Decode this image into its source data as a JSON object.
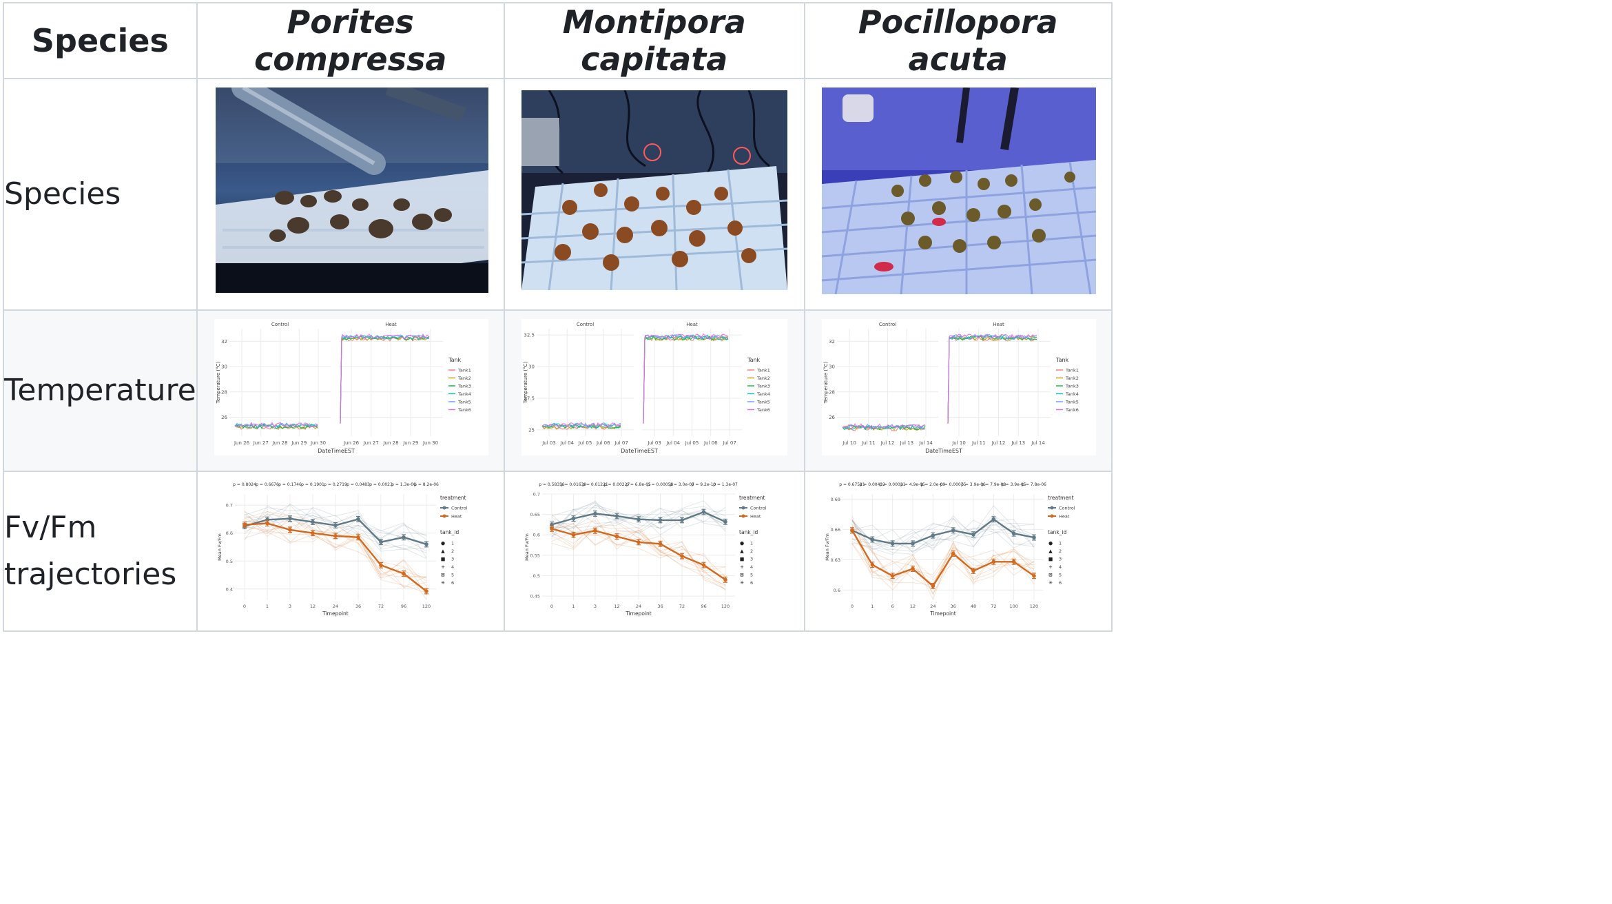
{
  "headers": [
    "Species",
    "Porites compressa",
    "Montipora capitata",
    "Pocillopora acuta"
  ],
  "rows": {
    "species": "Species",
    "temperature": "Temperature",
    "fvfm": [
      "Fv/Fm",
      "trajectories"
    ]
  },
  "colors": {
    "control": "#5f7a86",
    "heat": "#d2691e",
    "border": "#d0d7de",
    "alt_row": "#f6f8fa"
  },
  "temperature": {
    "facets": [
      "Control",
      "Heat"
    ],
    "legend_title": "Tank",
    "tanks": [
      "Tank1",
      "Tank2",
      "Tank3",
      "Tank4",
      "Tank5",
      "Tank6"
    ],
    "tank_colors": [
      "#f8766d",
      "#b79f00",
      "#00ba38",
      "#00bfc4",
      "#619cff",
      "#f564e3"
    ],
    "xlabel": "DateTimeEST",
    "ylabel": "Temperature (°C)"
  },
  "fvfm": {
    "legend_treatment": "treatment",
    "treatments": [
      "Control",
      "Heat"
    ],
    "legend_tank": "tank_id",
    "tank_ids": [
      "1",
      "2",
      "3",
      "4",
      "5",
      "6"
    ],
    "tank_glyphs": [
      "●",
      "▲",
      "■",
      "+",
      "⊠",
      "✳"
    ],
    "xlabel": "Timepoint",
    "ylabel": "Mean Fv/Fm"
  },
  "chart_data": [
    {
      "type": "line",
      "title": "",
      "xlabel": "DateTimeEST",
      "ylabel": "Temperature (°C)",
      "panels": [
        {
          "facet": "Control",
          "xticks": [
            "Jun 26",
            "Jun 27",
            "Jun 28",
            "Jun 29",
            "Jun 30"
          ],
          "level": 25.3
        },
        {
          "facet": "Heat",
          "xticks": [
            "Jun 26",
            "Jun 27",
            "Jun 28",
            "Jun 29",
            "Jun 30"
          ],
          "level": 32.3
        }
      ],
      "yticks": [
        26,
        28,
        30,
        32
      ],
      "ylim": [
        24.5,
        33
      ]
    },
    {
      "type": "line",
      "title": "",
      "xlabel": "DateTimeEST",
      "ylabel": "Temperature (°C)",
      "panels": [
        {
          "facet": "Control",
          "xticks": [
            "Jul 03",
            "Jul 04",
            "Jul 05",
            "Jul 06",
            "Jul 07"
          ],
          "level": 25.3
        },
        {
          "facet": "Heat",
          "xticks": [
            "Jul 03",
            "Jul 04",
            "Jul 05",
            "Jul 06",
            "Jul 07"
          ],
          "level": 32.3
        }
      ],
      "yticks": [
        25.0,
        27.5,
        30.0,
        32.5
      ],
      "ylim": [
        24.5,
        33
      ]
    },
    {
      "type": "line",
      "title": "",
      "xlabel": "DateTimeEST",
      "ylabel": "Temperature (°C)",
      "panels": [
        {
          "facet": "Control",
          "xticks": [
            "Jul 10",
            "Jul 11",
            "Jul 12",
            "Jul 13",
            "Jul 14"
          ],
          "level": 25.2
        },
        {
          "facet": "Heat",
          "xticks": [
            "Jul 10",
            "Jul 11",
            "Jul 12",
            "Jul 13",
            "Jul 14"
          ],
          "level": 32.3
        }
      ],
      "yticks": [
        26,
        28,
        30,
        32
      ],
      "ylim": [
        24.5,
        33
      ]
    },
    {
      "type": "line",
      "xlabel": "Timepoint",
      "ylabel": "Mean Fv/Fm",
      "categories": [
        "0",
        "1",
        "3",
        "12",
        "24",
        "36",
        "72",
        "96",
        "120"
      ],
      "pvalues": [
        "p = 0.8024",
        "p = 0.6676",
        "p = 0.1746",
        "p = 0.1901",
        "p = 0.2719",
        "p = 0.0483",
        "p = 0.0023",
        "p = 1.3e-06",
        "p = 8.2e-06"
      ],
      "yticks": [
        0.4,
        0.5,
        0.6,
        0.7
      ],
      "ylim": [
        0.36,
        0.74
      ],
      "series": [
        {
          "name": "Control",
          "values": [
            0.625,
            0.648,
            0.652,
            0.64,
            0.628,
            0.65,
            0.568,
            0.585,
            0.56
          ]
        },
        {
          "name": "Heat",
          "values": [
            0.63,
            0.635,
            0.612,
            0.6,
            0.59,
            0.585,
            0.485,
            0.455,
            0.392
          ]
        }
      ]
    },
    {
      "type": "line",
      "xlabel": "Timepoint",
      "ylabel": "Mean Fv/Fm",
      "categories": [
        "0",
        "1",
        "3",
        "12",
        "24",
        "36",
        "72",
        "96",
        "120"
      ],
      "pvalues": [
        "p = 0.58356",
        "p = 0.01639",
        "p = 0.01221",
        "p = 0.00227",
        "p = 6.8e-05",
        "p = 0.00058",
        "p = 3.0e-07",
        "p = 9.2e-10",
        "p = 1.3e-07"
      ],
      "yticks": [
        0.45,
        0.5,
        0.55,
        0.6,
        0.65,
        0.7
      ],
      "ylim": [
        0.44,
        0.7
      ],
      "series": [
        {
          "name": "Control",
          "values": [
            0.625,
            0.64,
            0.652,
            0.646,
            0.638,
            0.636,
            0.636,
            0.656,
            0.632
          ]
        },
        {
          "name": "Heat",
          "values": [
            0.615,
            0.6,
            0.61,
            0.596,
            0.582,
            0.578,
            0.548,
            0.526,
            0.49
          ]
        }
      ]
    },
    {
      "type": "line",
      "xlabel": "Timepoint",
      "ylabel": "Mean Fv/Fm",
      "categories": [
        "0",
        "1",
        "6",
        "12",
        "24",
        "36",
        "48",
        "72",
        "100",
        "120"
      ],
      "pvalues": [
        "p = 0.67521",
        "p = 0.00432",
        "p = 0.00031",
        "p = 4.9e-05",
        "p = 2.0e-09",
        "p = 0.00075",
        "p = 3.9e-06",
        "p = 7.9e-08",
        "p = 3.9e-05",
        "p = 7.8e-06"
      ],
      "yticks": [
        0.6,
        0.63,
        0.66,
        0.69
      ],
      "ylim": [
        0.59,
        0.695
      ],
      "series": [
        {
          "name": "Control",
          "values": [
            0.659,
            0.65,
            0.646,
            0.646,
            0.654,
            0.659,
            0.655,
            0.67,
            0.656,
            0.652
          ]
        },
        {
          "name": "Heat",
          "values": [
            0.659,
            0.625,
            0.614,
            0.621,
            0.604,
            0.636,
            0.619,
            0.628,
            0.628,
            0.614
          ]
        }
      ]
    }
  ]
}
